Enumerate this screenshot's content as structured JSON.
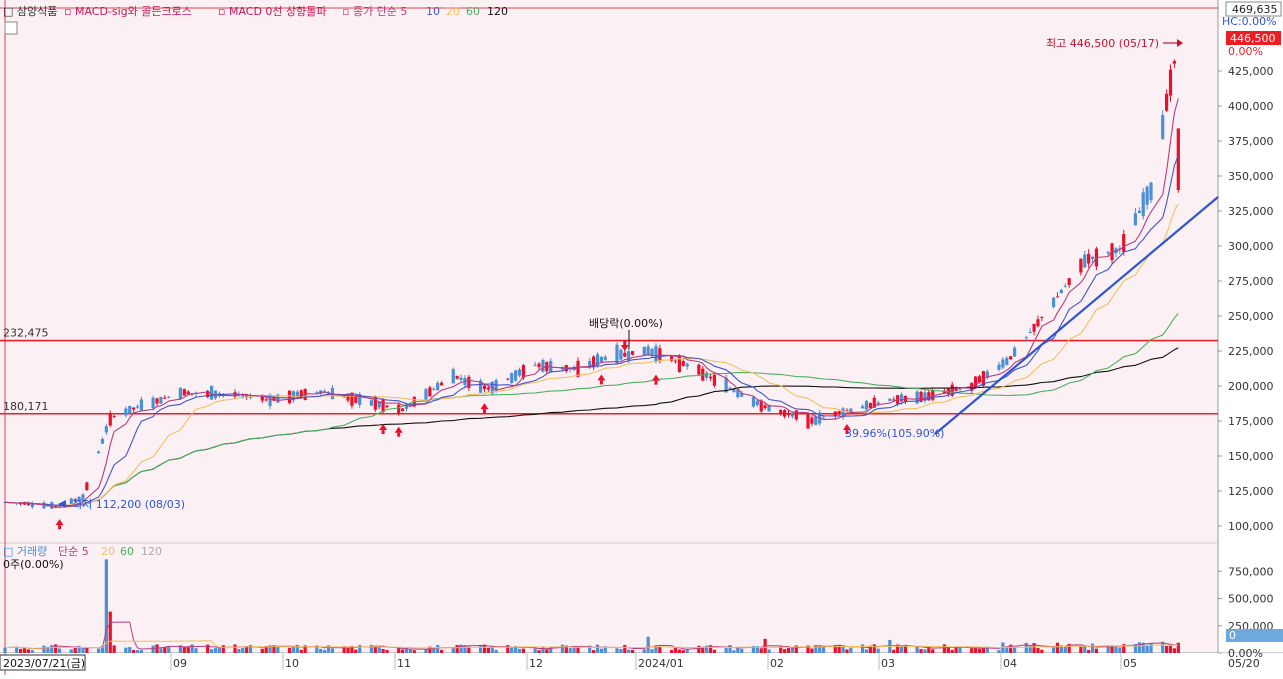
{
  "legend": {
    "stock_name": "삼양식품",
    "signal1": "MACD-sig와 골든크로스",
    "signal2": "MACD 0선 상향돌파",
    "ma_label": "종가 단순 5",
    "ma10": "10",
    "ma20": "20",
    "ma60": "60",
    "ma120": "120"
  },
  "volume_legend": {
    "label": "거래량",
    "ma_label": "단순 5",
    "ma20": "20",
    "ma60": "60",
    "ma120": "120",
    "current": "0주(0.00%)"
  },
  "annotations": {
    "high": "최고 446,500 (05/17)",
    "low": "최저 112,200 (08/03)",
    "dividend": "배당락(0.00%)",
    "drawdown": "39.96%(105.90%)",
    "level_top": "232,475",
    "level_bottom": "180,171",
    "hc_label": "HC:0.00%",
    "price_box": "446,500",
    "price_pct": "0.00%",
    "top_scale": "469,635",
    "volume_box": "0",
    "volume_pct": "0.00%"
  },
  "x_labels": [
    "2023/07/21(금)",
    "09",
    "10",
    "11",
    "12",
    "2024/01",
    "02",
    "03",
    "04",
    "05",
    "05/20"
  ],
  "colors": {
    "background": "#fbf1f4",
    "up": "#e8102a",
    "down": "#4b8fd4",
    "ma5": "#b83b7c",
    "ma10": "#4455cc",
    "ma20": "#f0c060",
    "ma60": "#4caf60",
    "ma120": "#111111",
    "level_line": "#ee1c24",
    "trendline": "#2f55d4"
  },
  "chart_data": {
    "type": "candlestick",
    "title": "삼양식품",
    "y_ticks": [
      100000,
      125000,
      150000,
      175000,
      200000,
      225000,
      250000,
      275000,
      300000,
      325000,
      350000,
      375000,
      400000,
      425000
    ],
    "y_tick_labels": [
      "100,000",
      "125,000",
      "150,000",
      "175,000",
      "200,000",
      "225,000",
      "250,000",
      "275,000",
      "300,000",
      "325,000",
      "350,000",
      "375,000",
      "400,000",
      "425,000"
    ],
    "ylim": [
      90000,
      470000
    ],
    "horizontal_levels": [
      232475,
      180171
    ],
    "price_anchors": [
      {
        "date": "2023-07-21",
        "close": 117000
      },
      {
        "date": "2023-08-03",
        "close": 114000
      },
      {
        "date": "2023-08-10",
        "close": 120000
      },
      {
        "date": "2023-08-17",
        "close": 177000
      },
      {
        "date": "2023-08-24",
        "close": 185000
      },
      {
        "date": "2023-09-04",
        "close": 195000
      },
      {
        "date": "2023-09-18",
        "close": 194000
      },
      {
        "date": "2023-09-27",
        "close": 190000
      },
      {
        "date": "2023-10-10",
        "close": 196000
      },
      {
        "date": "2023-10-20",
        "close": 190000
      },
      {
        "date": "2023-10-31",
        "close": 183000
      },
      {
        "date": "2023-11-13",
        "close": 207000
      },
      {
        "date": "2023-11-22",
        "close": 198000
      },
      {
        "date": "2023-12-04",
        "close": 215000
      },
      {
        "date": "2023-12-14",
        "close": 212000
      },
      {
        "date": "2023-12-22",
        "close": 220000
      },
      {
        "date": "2024-01-02",
        "close": 225000
      },
      {
        "date": "2024-01-12",
        "close": 215000
      },
      {
        "date": "2024-01-22",
        "close": 200000
      },
      {
        "date": "2024-02-01",
        "close": 185000
      },
      {
        "date": "2024-02-13",
        "close": 175000
      },
      {
        "date": "2024-02-22",
        "close": 182000
      },
      {
        "date": "2024-03-04",
        "close": 190000
      },
      {
        "date": "2024-03-14",
        "close": 193000
      },
      {
        "date": "2024-03-25",
        "close": 200000
      },
      {
        "date": "2024-04-04",
        "close": 220000
      },
      {
        "date": "2024-04-15",
        "close": 260000
      },
      {
        "date": "2024-04-23",
        "close": 290000
      },
      {
        "date": "2024-05-02",
        "close": 298000
      },
      {
        "date": "2024-05-10",
        "close": 340000
      },
      {
        "date": "2024-05-17",
        "close": 446500
      }
    ],
    "moving_average_end_values": [
      {
        "name": "5",
        "value": 378000
      },
      {
        "name": "10",
        "value": 342000
      },
      {
        "name": "20",
        "value": 310000
      },
      {
        "name": "60",
        "value": 240000
      },
      {
        "name": "120",
        "value": 220000
      }
    ],
    "volume": {
      "y_ticks": [
        0,
        250000,
        500000,
        750000
      ],
      "y_tick_labels": [
        "0.00%",
        "250,000",
        "500,000",
        "750,000"
      ],
      "ylim": [
        0,
        900000
      ],
      "peaks": [
        {
          "date": "2023-08-16",
          "value": 860000
        },
        {
          "date": "2023-08-17",
          "value": 380000
        },
        {
          "date": "2024-01-02",
          "value": 150000
        },
        {
          "date": "2024-02-01",
          "value": 130000
        },
        {
          "date": "2024-03-04",
          "value": 120000
        }
      ]
    }
  }
}
